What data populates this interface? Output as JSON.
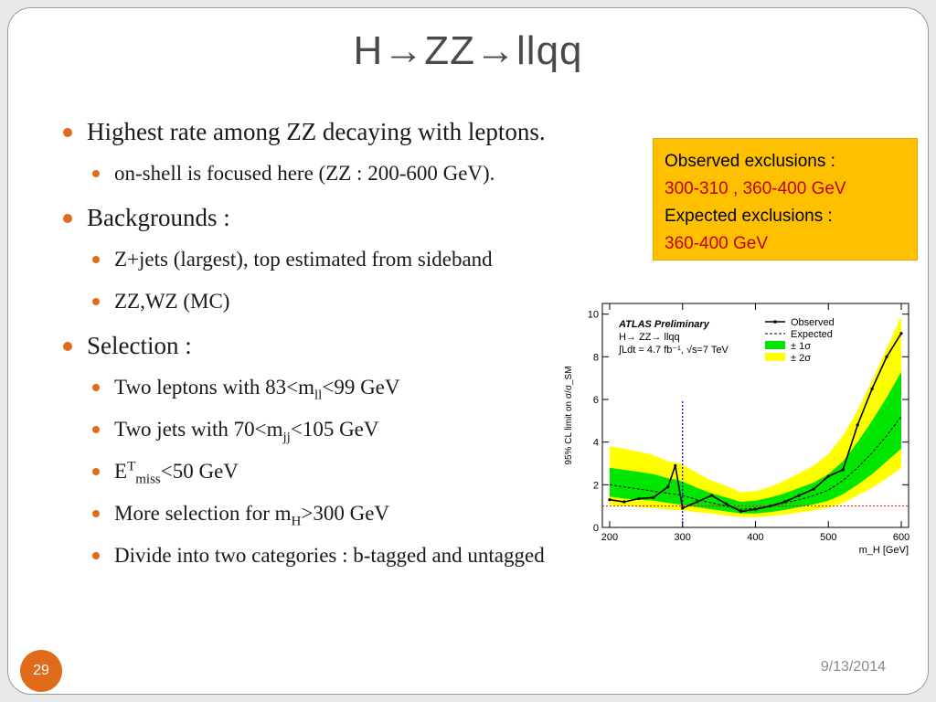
{
  "slide": {
    "title": "H→ZZ→llqq",
    "page_number": "29",
    "date": "9/13/2014"
  },
  "bullets": {
    "b1": "Highest rate among ZZ decaying with leptons.",
    "b1_sub": "on-shell is focused here (ZZ : 200-600 GeV).",
    "b2": "Backgrounds :",
    "b2_sub1": "Z+jets (largest), top  estimated from sideband",
    "b2_sub2": "ZZ,WZ (MC)",
    "b3": "Selection :",
    "sel1_pre": "Two leptons with 83<m",
    "sel1_sub": "ll",
    "sel1_post": "<99 GeV",
    "sel2_pre": "Two jets with 70<m",
    "sel2_sub": "jj",
    "sel2_post": "<105 GeV",
    "sel3_pre": "E",
    "sel3_sup": "T",
    "sel3_sub": "miss",
    "sel3_post": "<50 GeV",
    "sel4_pre": "More selection for m",
    "sel4_sub": "H",
    "sel4_post": ">300 GeV",
    "sel5": "Divide  into two categories : b-tagged and untagged"
  },
  "infobox": {
    "obs_label": "Observed exclusions :",
    "obs_value": "300-310 , 360-400 GeV",
    "exp_label": "Expected exclusions :",
    "exp_value": "360-400 GeV"
  },
  "chart_data": {
    "type": "line",
    "title": "ATLAS Preliminary",
    "subtitle": "H→ ZZ→ llqq",
    "lumi_label": "∫Ldt = 4.7 fb⁻¹, √s=7 TeV",
    "xlabel": "m_H [GeV]",
    "ylabel": "95% CL limit on σ/σ_SM",
    "xlim": [
      190,
      610
    ],
    "ylim": [
      0,
      10.5
    ],
    "xticks": [
      200,
      300,
      400,
      500,
      600
    ],
    "yticks": [
      0,
      2,
      4,
      6,
      8,
      10
    ],
    "legend_position": "top-right",
    "legend": {
      "observed": "Observed",
      "expected": "Expected",
      "one_sigma": "± 1σ",
      "two_sigma": "± 2σ"
    },
    "x": [
      200,
      220,
      240,
      260,
      280,
      290,
      300,
      320,
      340,
      360,
      380,
      400,
      420,
      440,
      460,
      480,
      500,
      520,
      540,
      560,
      580,
      600
    ],
    "series": [
      {
        "name": "Observed",
        "values": [
          1.3,
          1.2,
          1.35,
          1.4,
          1.9,
          2.9,
          0.9,
          1.2,
          1.5,
          1.1,
          0.75,
          0.85,
          1.0,
          1.2,
          1.5,
          1.8,
          2.4,
          2.7,
          4.8,
          6.5,
          8.0,
          9.1
        ]
      },
      {
        "name": "Expected",
        "values": [
          2.0,
          1.9,
          1.8,
          1.7,
          1.6,
          1.55,
          1.5,
          1.3,
          1.15,
          1.0,
          0.85,
          0.9,
          1.0,
          1.15,
          1.3,
          1.5,
          1.75,
          2.2,
          2.8,
          3.5,
          4.3,
          5.2
        ]
      }
    ],
    "band_1sigma_low": [
      1.45,
      1.35,
      1.3,
      1.25,
      1.15,
      1.1,
      1.05,
      0.95,
      0.85,
      0.75,
      0.65,
      0.65,
      0.72,
      0.82,
      0.95,
      1.08,
      1.25,
      1.55,
      2.0,
      2.5,
      3.1,
      3.7
    ],
    "band_1sigma_high": [
      2.8,
      2.7,
      2.6,
      2.5,
      2.3,
      2.25,
      2.15,
      1.85,
      1.6,
      1.4,
      1.2,
      1.25,
      1.4,
      1.6,
      1.85,
      2.1,
      2.5,
      3.1,
      4.0,
      5.0,
      6.1,
      7.3
    ],
    "band_2sigma_low": [
      1.05,
      1.0,
      0.95,
      0.9,
      0.85,
      0.82,
      0.8,
      0.72,
      0.65,
      0.55,
      0.48,
      0.48,
      0.53,
      0.6,
      0.7,
      0.8,
      0.93,
      1.15,
      1.5,
      1.85,
      2.3,
      2.8
    ],
    "band_2sigma_high": [
      3.8,
      3.7,
      3.55,
      3.4,
      3.1,
      3.05,
      2.95,
      2.55,
      2.2,
      1.95,
      1.65,
      1.7,
      1.9,
      2.2,
      2.55,
      2.9,
      3.45,
      4.3,
      5.5,
      6.9,
      8.4,
      9.9
    ],
    "reference_line_y": 1,
    "vertical_marker_x": 300,
    "colors": {
      "one_sigma": "#00e600",
      "two_sigma": "#ffff00",
      "observed": "#000000",
      "expected": "#000000",
      "reference": "#ff0000",
      "marker": "#0000ff"
    }
  },
  "colors": {
    "accent": "#e06c1b",
    "infobox_bg": "#ffc000",
    "infobox_value": "#c00000"
  }
}
